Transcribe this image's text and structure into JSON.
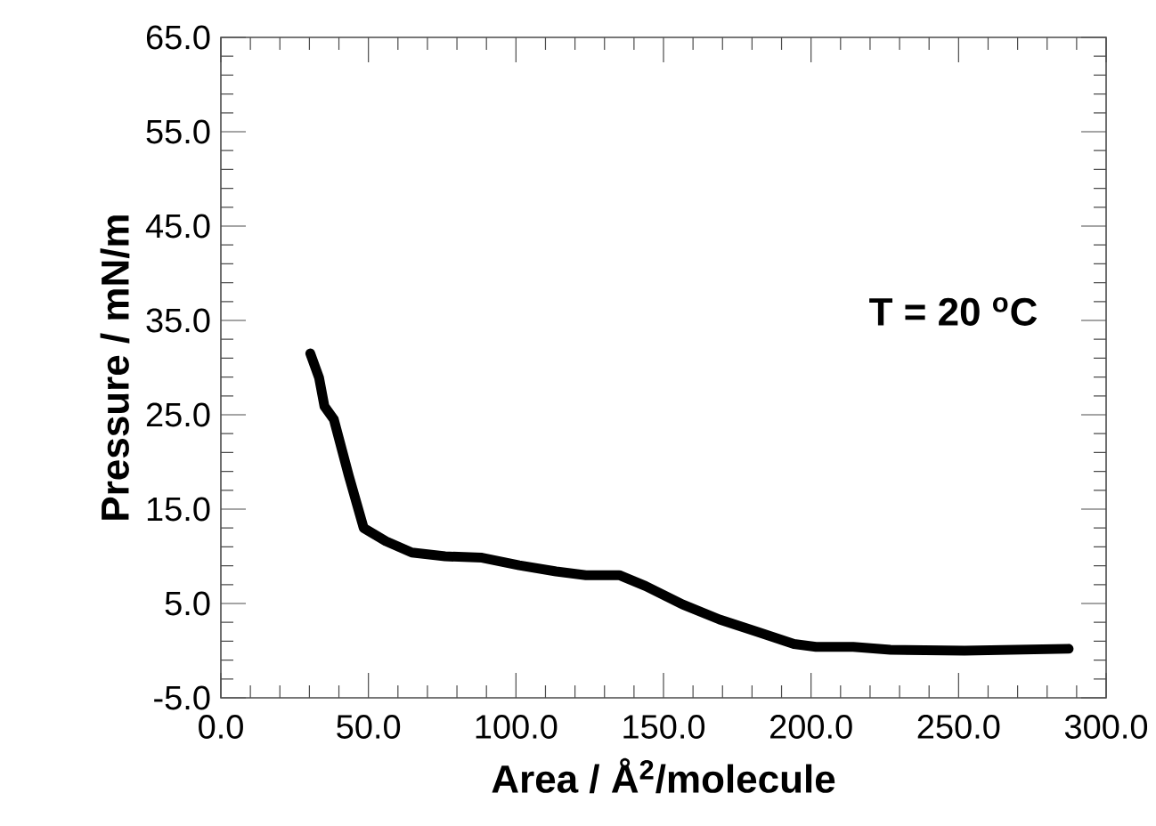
{
  "chart_data": {
    "type": "line",
    "xlabel": "Area / Å$^{2}$/molecule",
    "ylabel": "Pressure  /  mN/m",
    "annotations": [
      "T = 20  $^{o}$C"
    ],
    "xlim": [
      0,
      300
    ],
    "ylim": [
      -5,
      65
    ],
    "xticks": [
      {
        "value": 0,
        "label": "0.0"
      },
      {
        "value": 50,
        "label": "50.0"
      },
      {
        "value": 100,
        "label": "100.0"
      },
      {
        "value": 150,
        "label": "150.0"
      },
      {
        "value": 200,
        "label": "200.0"
      },
      {
        "value": 250,
        "label": "250.0"
      },
      {
        "value": 300,
        "label": "300.0"
      },
      {
        "value": 10,
        "label": null
      },
      {
        "value": 20,
        "label": null
      },
      {
        "value": 30,
        "label": null
      },
      {
        "value": 40,
        "label": null
      },
      {
        "value": 60,
        "label": null
      },
      {
        "value": 70,
        "label": null
      },
      {
        "value": 80,
        "label": null
      },
      {
        "value": 90,
        "label": null
      },
      {
        "value": 110,
        "label": null
      },
      {
        "value": 120,
        "label": null
      },
      {
        "value": 130,
        "label": null
      },
      {
        "value": 140,
        "label": null
      },
      {
        "value": 160,
        "label": null
      },
      {
        "value": 170,
        "label": null
      },
      {
        "value": 180,
        "label": null
      },
      {
        "value": 190,
        "label": null
      },
      {
        "value": 210,
        "label": null
      },
      {
        "value": 220,
        "label": null
      },
      {
        "value": 230,
        "label": null
      },
      {
        "value": 240,
        "label": null
      },
      {
        "value": 260,
        "label": null
      },
      {
        "value": 270,
        "label": null
      },
      {
        "value": 280,
        "label": null
      },
      {
        "value": 290,
        "label": null
      }
    ],
    "yticks": [
      {
        "value": -5,
        "label": "-5.0"
      },
      {
        "value": 5,
        "label": "5.0"
      },
      {
        "value": 15,
        "label": "15.0"
      },
      {
        "value": 25,
        "label": "25.0"
      },
      {
        "value": 35,
        "label": "35.0"
      },
      {
        "value": 45,
        "label": "45.0"
      },
      {
        "value": 55,
        "label": "55.0"
      },
      {
        "value": 65,
        "label": "65.0"
      },
      {
        "value": -3,
        "label": null
      },
      {
        "value": -1,
        "label": null
      },
      {
        "value": 1,
        "label": null
      },
      {
        "value": 3,
        "label": null
      },
      {
        "value": 7,
        "label": null
      },
      {
        "value": 9,
        "label": null
      },
      {
        "value": 11,
        "label": null
      },
      {
        "value": 13,
        "label": null
      },
      {
        "value": 17,
        "label": null
      },
      {
        "value": 19,
        "label": null
      },
      {
        "value": 21,
        "label": null
      },
      {
        "value": 23,
        "label": null
      },
      {
        "value": 27,
        "label": null
      },
      {
        "value": 29,
        "label": null
      },
      {
        "value": 31,
        "label": null
      },
      {
        "value": 33,
        "label": null
      },
      {
        "value": 37,
        "label": null
      },
      {
        "value": 39,
        "label": null
      },
      {
        "value": 41,
        "label": null
      },
      {
        "value": 43,
        "label": null
      },
      {
        "value": 47,
        "label": null
      },
      {
        "value": 49,
        "label": null
      },
      {
        "value": 51,
        "label": null
      },
      {
        "value": 53,
        "label": null
      },
      {
        "value": 57,
        "label": null
      },
      {
        "value": 59,
        "label": null
      },
      {
        "value": 61,
        "label": null
      },
      {
        "value": 63,
        "label": null
      }
    ],
    "series": [
      {
        "color": "#000000",
        "x": [
          30.3,
          33.3,
          35.1,
          38.3,
          43.3,
          48.4,
          55.9,
          64.7,
          76.0,
          88.5,
          101.1,
          113.6,
          123.7,
          135.0,
          143.9,
          156.5,
          169.0,
          181.7,
          194.2,
          201.7,
          214.3,
          226.9,
          252.0,
          287.3
        ],
        "values": [
          31.5,
          28.9,
          25.9,
          24.5,
          18.6,
          13.0,
          11.6,
          10.4,
          10.0,
          9.85,
          9.05,
          8.4,
          8.0,
          8.0,
          6.85,
          4.9,
          3.3,
          2.0,
          0.7,
          0.4,
          0.4,
          0.1,
          0.0,
          0.2
        ]
      }
    ]
  }
}
